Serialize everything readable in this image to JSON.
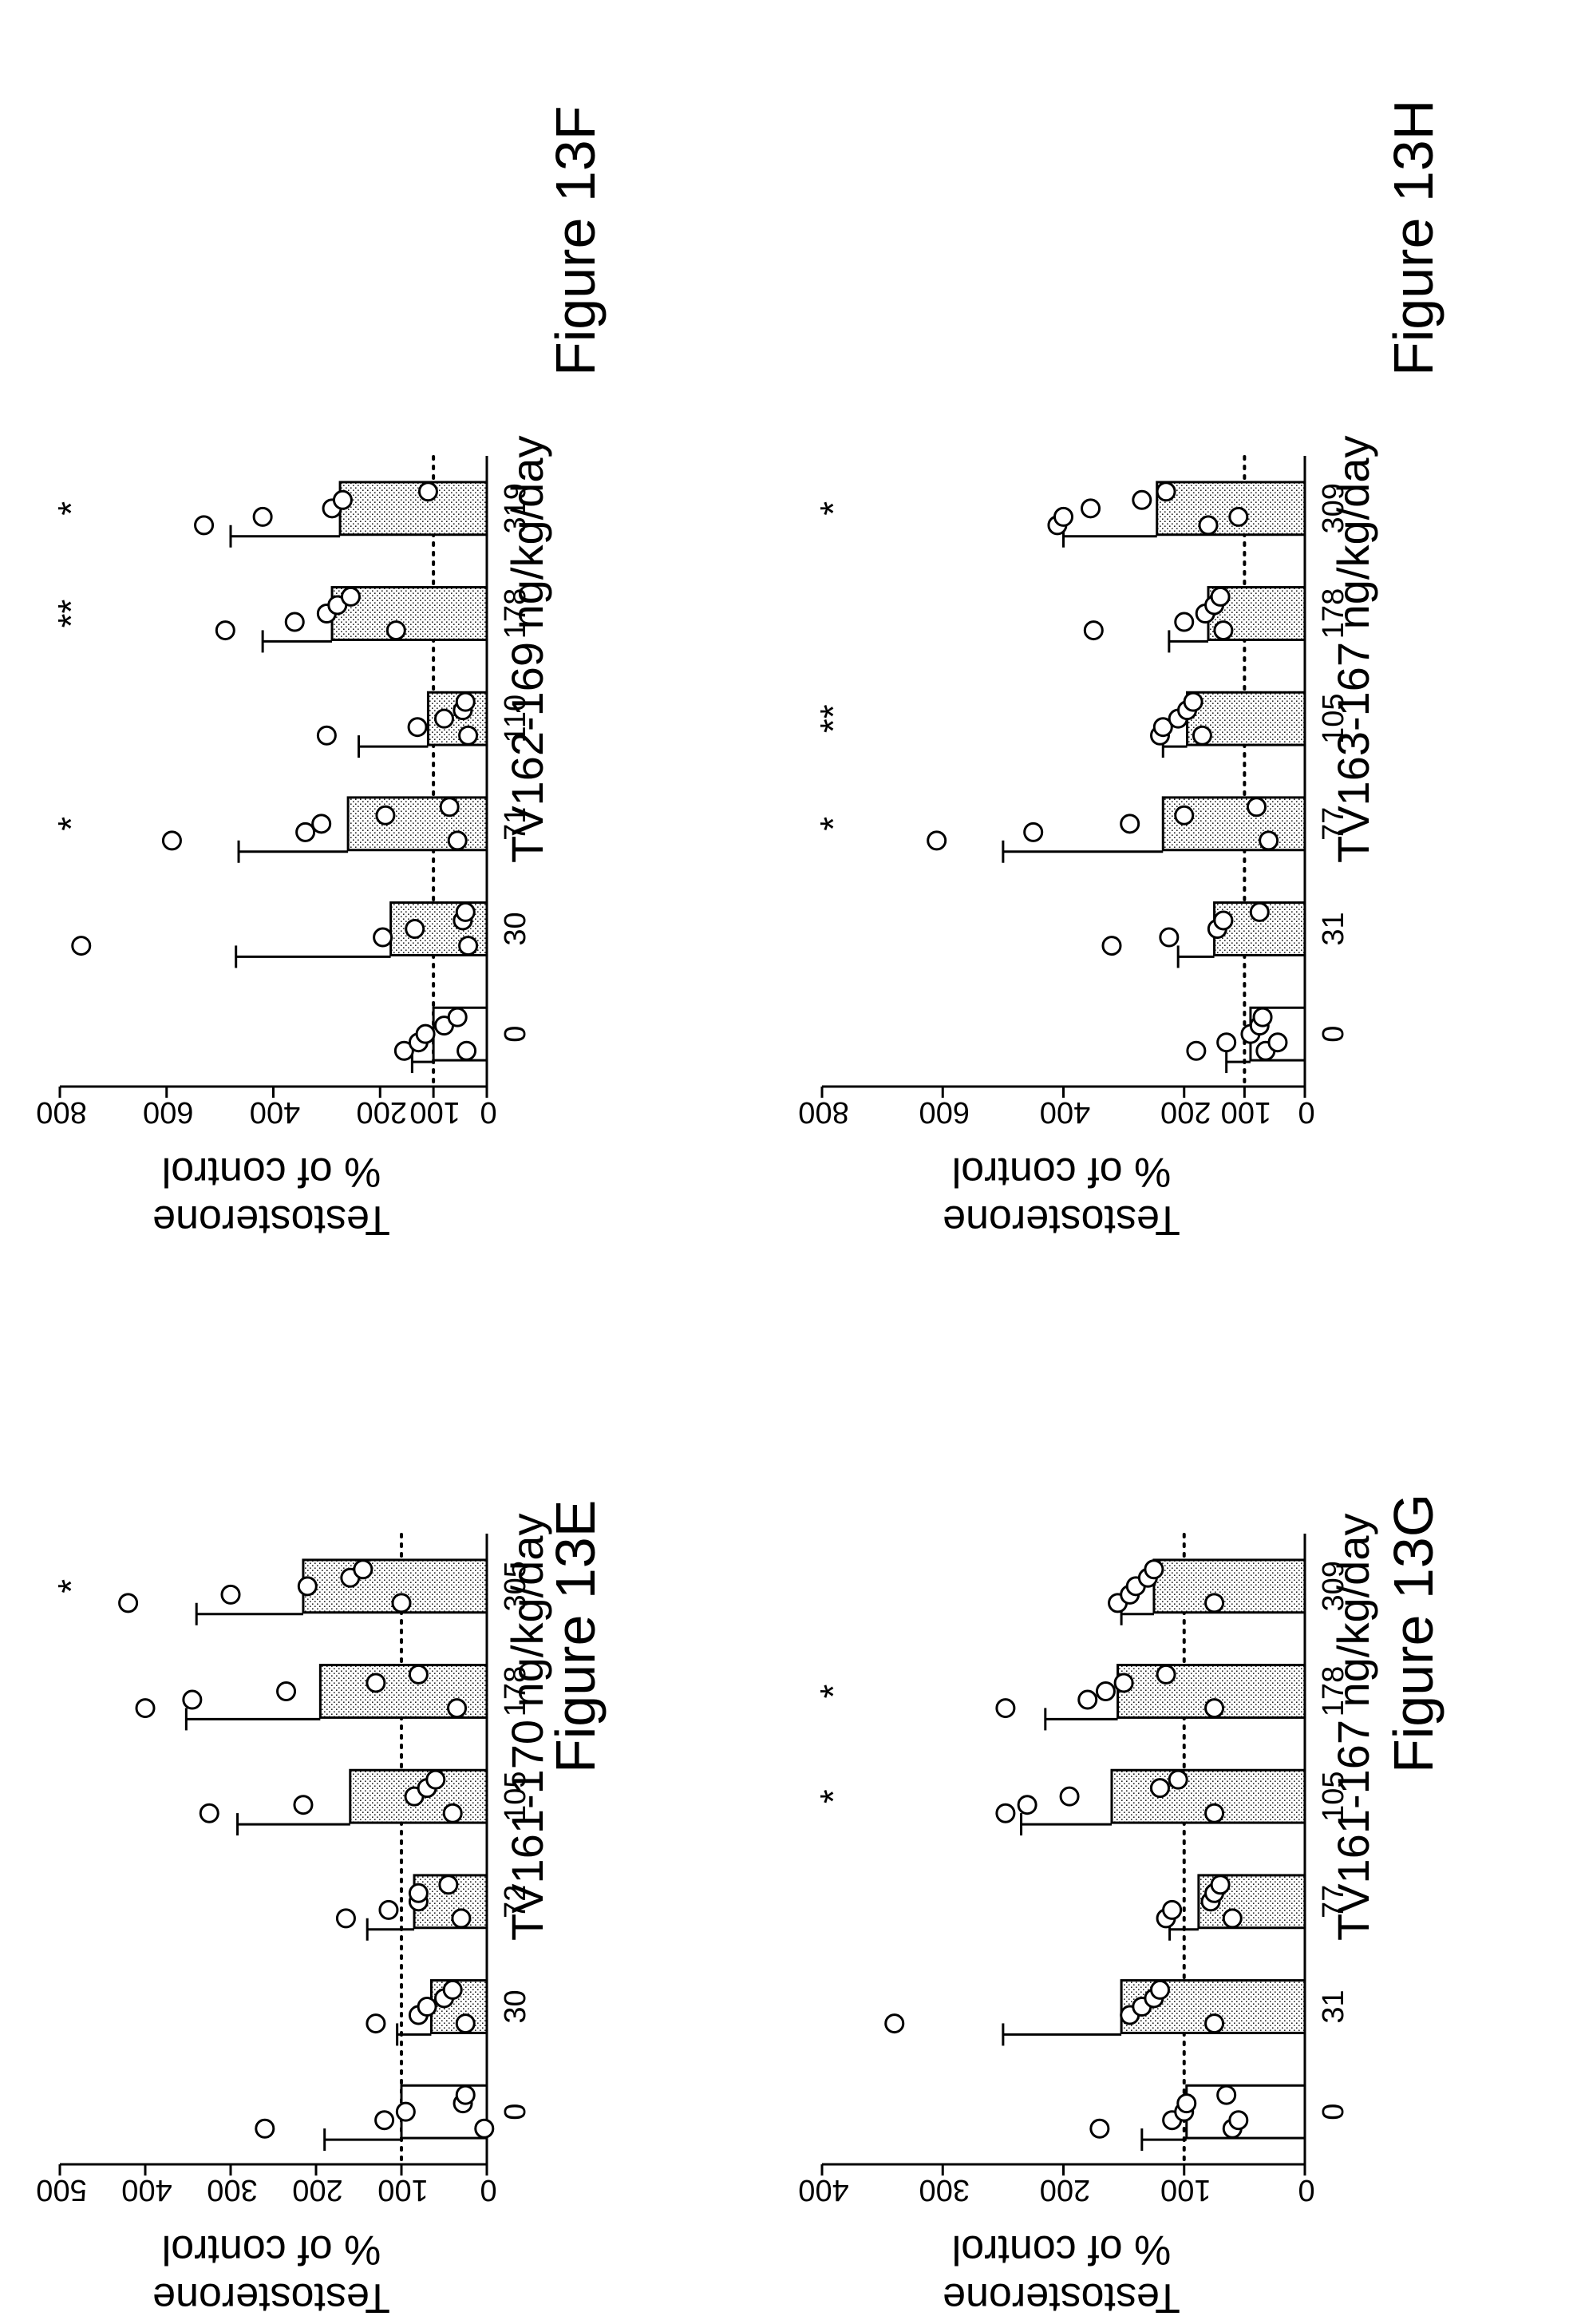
{
  "chart_data": [
    {
      "id": "13E",
      "type": "bar",
      "figure_label": "Figure 13E",
      "xlabel": "TV161-170 ng/kg/day",
      "ylabel_line1": "Testosterone",
      "ylabel_line2": "% of control",
      "ylim": [
        0,
        500
      ],
      "yticks": [
        0,
        100,
        200,
        300,
        400,
        500
      ],
      "reference_line": 100,
      "categories": [
        "0",
        "30",
        "72",
        "105",
        "178",
        "305"
      ],
      "values": [
        100,
        65,
        85,
        160,
        195,
        215
      ],
      "error_upper": [
        190,
        105,
        140,
        292,
        352,
        340
      ],
      "significance": [
        "",
        "",
        "",
        "",
        "",
        "*"
      ],
      "points": [
        [
          260,
          120,
          95,
          28,
          25,
          3
        ],
        [
          130,
          80,
          70,
          50,
          40,
          25
        ],
        [
          165,
          115,
          80,
          80,
          45,
          30
        ],
        [
          325,
          215,
          85,
          70,
          60,
          40
        ],
        [
          400,
          345,
          235,
          130,
          80,
          35
        ],
        [
          420,
          300,
          210,
          160,
          145,
          100
        ]
      ]
    },
    {
      "id": "13F",
      "type": "bar",
      "figure_label": "Figure 13F",
      "xlabel": "TV162-169 ng/kg/day",
      "ylabel_line1": "Testosterone",
      "ylabel_line2": "% of control",
      "ylim": [
        0,
        800
      ],
      "yticks": [
        0,
        100,
        200,
        400,
        600,
        800
      ],
      "reference_line": 100,
      "categories": [
        "0",
        "30",
        "71",
        "110",
        "178",
        "319"
      ],
      "values": [
        100,
        180,
        260,
        110,
        290,
        275
      ],
      "error_upper": [
        140,
        470,
        465,
        240,
        420,
        480
      ],
      "significance": [
        "",
        "",
        "*",
        "",
        "**",
        "*"
      ],
      "points": [
        [
          155,
          128,
          115,
          80,
          55,
          38
        ],
        [
          760,
          195,
          135,
          45,
          40,
          35
        ],
        [
          590,
          340,
          310,
          190,
          70,
          55
        ],
        [
          300,
          130,
          80,
          45,
          40,
          35
        ],
        [
          490,
          360,
          300,
          280,
          255,
          170
        ],
        [
          530,
          420,
          290,
          270,
          110
        ]
      ]
    },
    {
      "id": "13G",
      "type": "bar",
      "figure_label": "Figure 13G",
      "xlabel": "TV161-167 ng/kg/day",
      "ylabel_line1": "Testosterone",
      "ylabel_line2": "% of control",
      "ylim": [
        0,
        400
      ],
      "yticks": [
        0,
        100,
        200,
        300,
        400
      ],
      "reference_line": 100,
      "categories": [
        "0",
        "31",
        "77",
        "105",
        "178",
        "309"
      ],
      "values": [
        98,
        152,
        88,
        160,
        155,
        125
      ],
      "error_upper": [
        135,
        250,
        112,
        235,
        215,
        152
      ],
      "significance": [
        "",
        "",
        "",
        "*",
        "*",
        ""
      ],
      "points": [
        [
          170,
          110,
          100,
          98,
          65,
          60,
          55
        ],
        [
          340,
          145,
          135,
          125,
          120,
          75
        ],
        [
          115,
          110,
          78,
          75,
          70,
          60
        ],
        [
          248,
          230,
          195,
          120,
          105,
          75
        ],
        [
          248,
          180,
          165,
          150,
          115,
          75
        ],
        [
          155,
          145,
          140,
          130,
          125,
          75
        ]
      ]
    },
    {
      "id": "13H",
      "type": "bar",
      "figure_label": "Figure 13H",
      "xlabel": "TV163-167 ng/kg/day",
      "ylabel_line1": "Testosterone",
      "ylabel_line2": "% of control",
      "ylim": [
        0,
        800
      ],
      "yticks": [
        0,
        100,
        200,
        400,
        600,
        800
      ],
      "reference_line": 100,
      "categories": [
        "0",
        "31",
        "77",
        "105",
        "178",
        "309"
      ],
      "values": [
        90,
        150,
        235,
        195,
        160,
        245
      ],
      "error_upper": [
        130,
        210,
        500,
        235,
        225,
        400
      ],
      "significance": [
        "",
        "",
        "*",
        "**",
        "",
        "*"
      ],
      "points": [
        [
          180,
          130,
          90,
          75,
          70,
          65,
          45
        ],
        [
          320,
          225,
          145,
          135,
          75
        ],
        [
          610,
          450,
          290,
          200,
          80,
          60
        ],
        [
          240,
          235,
          210,
          195,
          185,
          170
        ],
        [
          350,
          200,
          165,
          150,
          140,
          135
        ],
        [
          410,
          400,
          355,
          270,
          230,
          160,
          110
        ]
      ]
    }
  ]
}
